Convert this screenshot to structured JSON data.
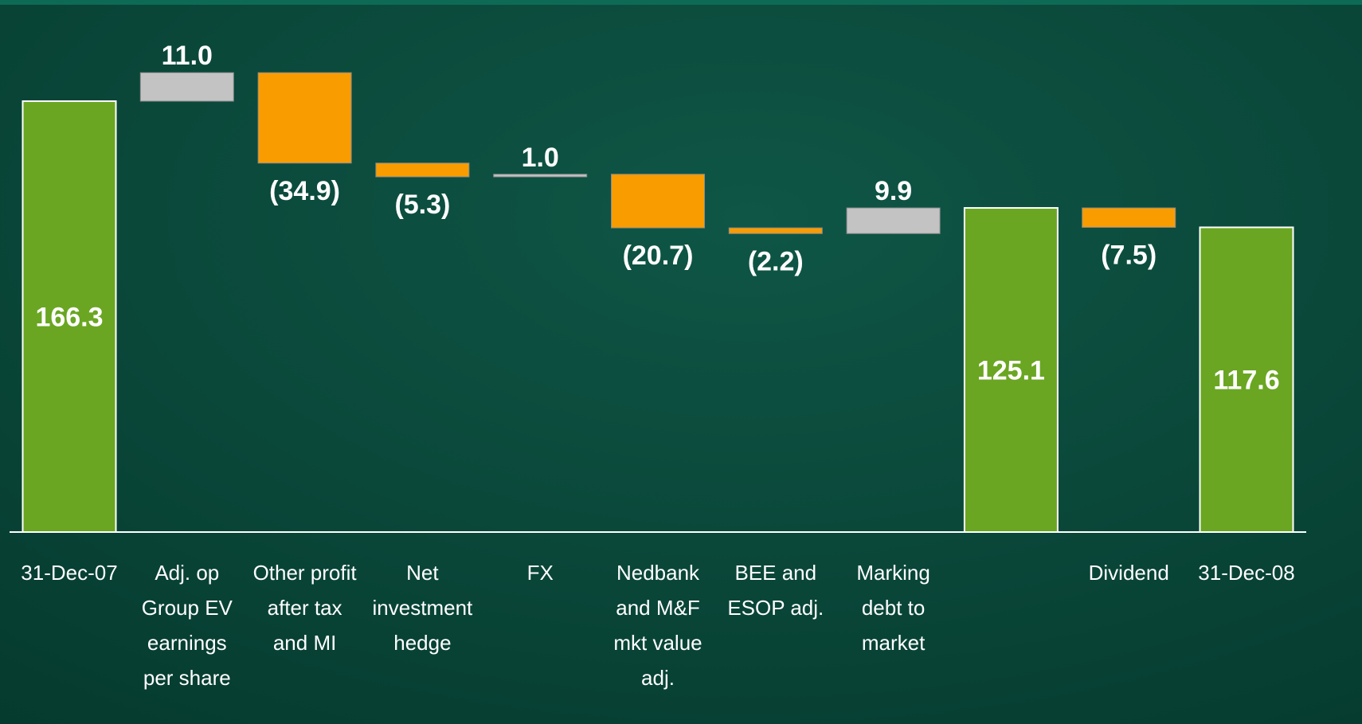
{
  "chart_data": {
    "type": "waterfall",
    "categories": [
      "31-Dec-07",
      "Adj. op\nGroup EV\nearnings\nper share",
      "Other profit\nafter tax\nand MI",
      "Net\ninvestment\nhedge",
      "FX",
      "Nedbank\nand M&F\nmkt value\nadj.",
      "BEE and\nESOP adj.",
      "Marking\ndebt to\nmarket",
      null,
      "Dividend",
      "31-Dec-08"
    ],
    "values": [
      166.3,
      11.0,
      -34.9,
      -5.3,
      1.0,
      -20.7,
      -2.2,
      9.9,
      125.1,
      -7.5,
      117.6
    ],
    "value_labels": [
      "166.3",
      "11.0",
      "(34.9)",
      "(5.3)",
      "1.0",
      "(20.7)",
      "(2.2)",
      "9.9",
      "125.1",
      "(7.5)",
      "117.6"
    ],
    "totals": [
      0,
      8,
      10
    ],
    "colors": {
      "total": "#6aa622",
      "increase": "#c3c3c3",
      "decrease": "#f99c00"
    }
  }
}
